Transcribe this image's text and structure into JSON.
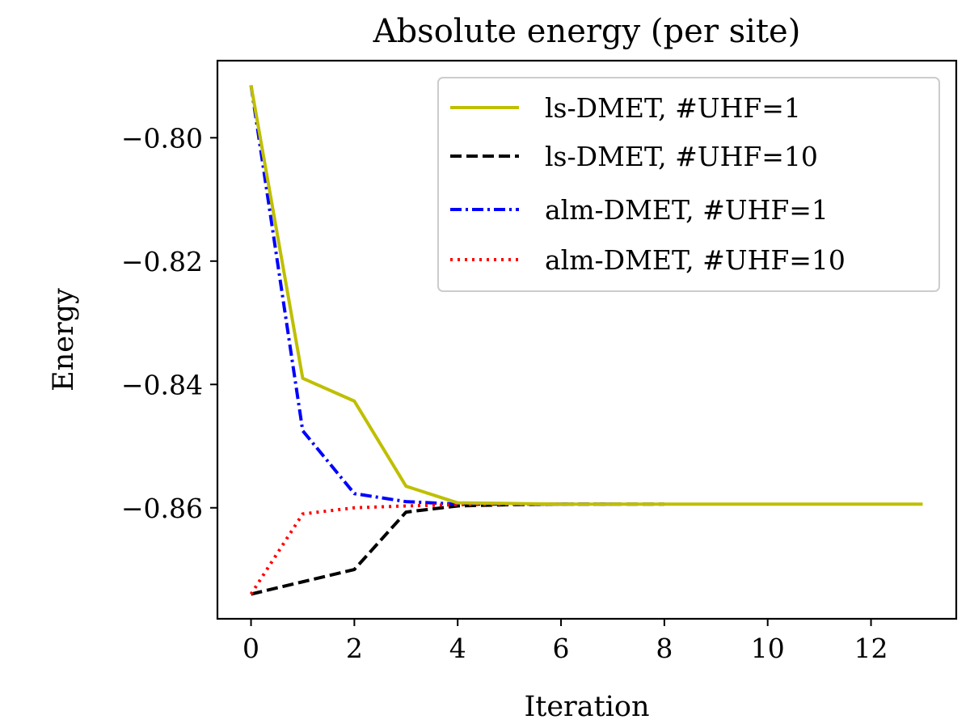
{
  "chart_data": {
    "type": "line",
    "title": "Absolute energy (per site)",
    "xlabel": "Iteration",
    "ylabel": "Energy",
    "xlim": [
      -0.65,
      13.65
    ],
    "ylim": [
      -0.878,
      -0.7875
    ],
    "xticks": [
      0,
      2,
      4,
      6,
      8,
      10,
      12
    ],
    "xtick_labels": [
      "0",
      "2",
      "4",
      "6",
      "8",
      "10",
      "12"
    ],
    "yticks": [
      -0.8,
      -0.82,
      -0.84,
      -0.86
    ],
    "ytick_labels": [
      "−0.80",
      "−0.82",
      "−0.84",
      "−0.86"
    ],
    "grid": false,
    "legend_position": "upper-right",
    "series": [
      {
        "name": "ls-DMET, #UHF=1",
        "color": "#bfbf00",
        "dash": "solid",
        "x": [
          0,
          1,
          2,
          3,
          4,
          5,
          6,
          7,
          8,
          9,
          10,
          11,
          12,
          13
        ],
        "y": [
          -0.7915,
          -0.839,
          -0.8427,
          -0.8565,
          -0.8592,
          -0.8593,
          -0.8594,
          -0.8594,
          -0.8594,
          -0.8594,
          -0.8594,
          -0.8594,
          -0.8594,
          -0.8594
        ]
      },
      {
        "name": "ls-DMET, #UHF=10",
        "color": "#000000",
        "dash": "dashed",
        "x": [
          0,
          1,
          2,
          3,
          4,
          5,
          6,
          7,
          8
        ],
        "y": [
          -0.874,
          -0.872,
          -0.87,
          -0.8607,
          -0.8597,
          -0.8595,
          -0.8594,
          -0.8594,
          -0.8594
        ]
      },
      {
        "name": "alm-DMET, #UHF=1",
        "color": "#0000ff",
        "dash": "dashdot",
        "x": [
          0,
          1,
          2,
          3,
          4,
          5,
          6,
          7
        ],
        "y": [
          -0.7915,
          -0.8475,
          -0.8577,
          -0.859,
          -0.8594,
          -0.8594,
          -0.8594,
          -0.8594
        ]
      },
      {
        "name": "alm-DMET, #UHF=10",
        "color": "#ff0000",
        "dash": "dotted",
        "x": [
          0,
          1,
          2,
          3,
          4,
          5,
          6
        ],
        "y": [
          -0.874,
          -0.861,
          -0.86,
          -0.8597,
          -0.8595,
          -0.8594,
          -0.8594
        ]
      }
    ]
  }
}
